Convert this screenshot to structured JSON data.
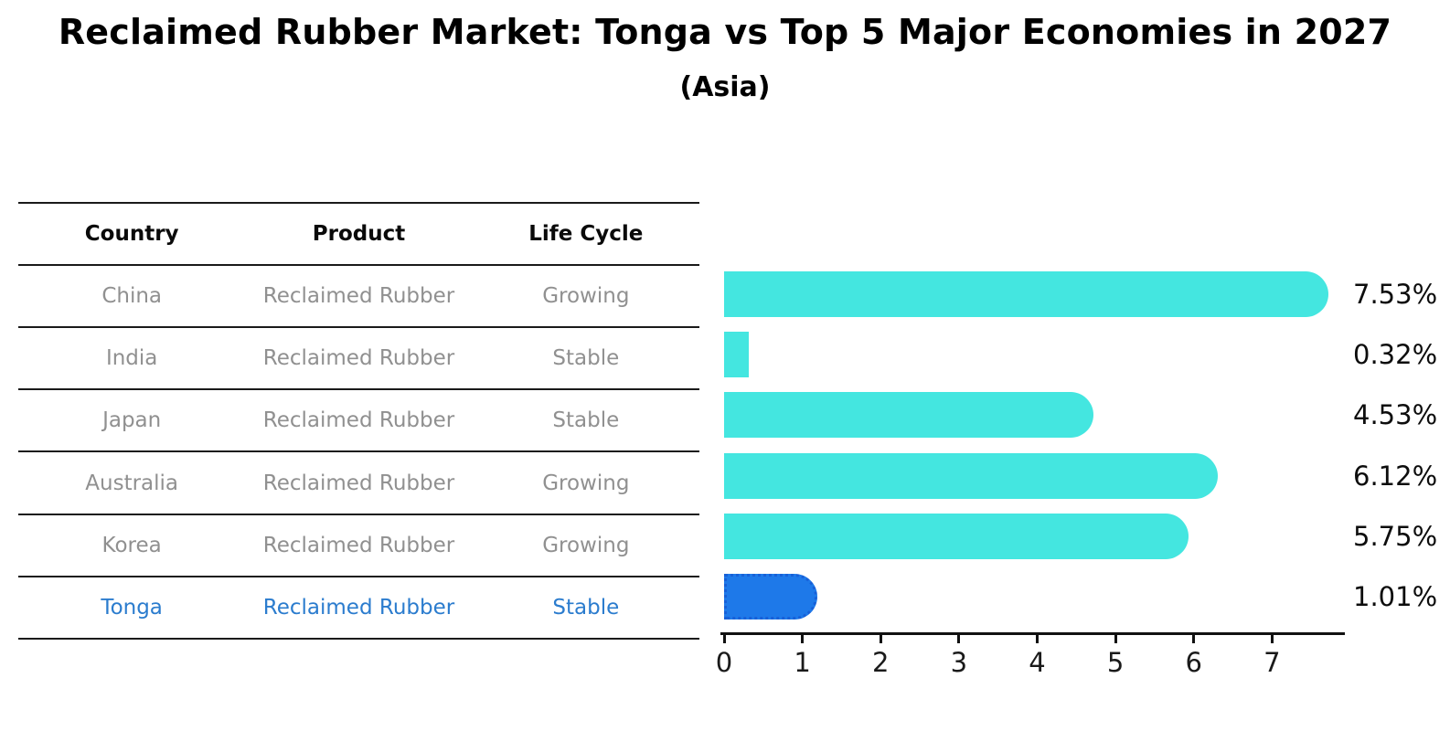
{
  "page": {
    "title": "Reclaimed Rubber Market: Tonga vs Top 5 Major Economies in 2027",
    "subtitle": "(Asia)"
  },
  "table": {
    "headers": [
      "Country",
      "Product",
      "Life Cycle"
    ],
    "rows": [
      {
        "country": "China",
        "product": "Reclaimed Rubber",
        "life_cycle": "Growing",
        "highlight": false
      },
      {
        "country": "India",
        "product": "Reclaimed Rubber",
        "life_cycle": "Stable",
        "highlight": false
      },
      {
        "country": "Japan",
        "product": "Reclaimed Rubber",
        "life_cycle": "Stable",
        "highlight": false
      },
      {
        "country": "Australia",
        "product": "Reclaimed Rubber",
        "life_cycle": "Growing",
        "highlight": false
      },
      {
        "country": "Korea",
        "product": "Reclaimed Rubber",
        "life_cycle": "Growing",
        "highlight": false
      },
      {
        "country": "Tonga",
        "product": "Reclaimed Rubber",
        "life_cycle": "Stable",
        "highlight": true
      }
    ]
  },
  "chart_data": {
    "type": "bar",
    "orientation": "horizontal",
    "title": "Reclaimed Rubber Market: Tonga vs Top 5 Major Economies in 2027",
    "subtitle": "(Asia)",
    "categories": [
      "China",
      "India",
      "Japan",
      "Australia",
      "Korea",
      "Tonga"
    ],
    "values": [
      7.53,
      0.32,
      4.53,
      6.12,
      5.75,
      1.01
    ],
    "value_labels": [
      "7.53%",
      "0.32%",
      "4.53%",
      "6.12%",
      "5.75%",
      "1.01%"
    ],
    "unit": "%",
    "xlabel": "",
    "ylabel": "",
    "xlim": [
      0,
      7.93
    ],
    "xticks": [
      "0",
      "1",
      "2",
      "3",
      "4",
      "5",
      "6",
      "7"
    ],
    "grid": false,
    "legend": false,
    "bar_color": "#44E6E0",
    "highlight_bar_color": "#1E79E9",
    "highlight_border_color": "#1760D8",
    "highlight_text_color": "#2B7CCE",
    "highlight_index": 5,
    "value_label_color": "#0D0D0D"
  }
}
